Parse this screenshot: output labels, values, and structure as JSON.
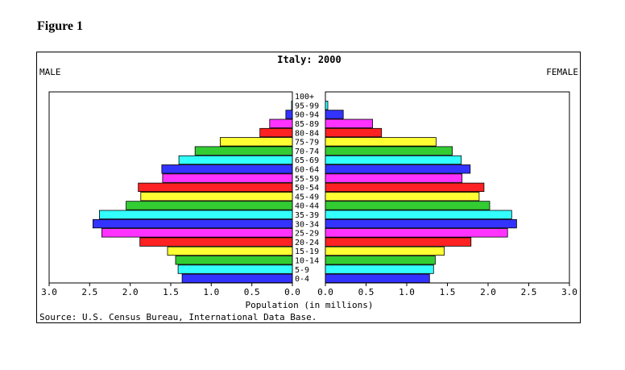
{
  "figure_label": "Figure 1",
  "chart_data": {
    "type": "bar",
    "title": "Italy: 2000",
    "left_label": "MALE",
    "right_label": "FEMALE",
    "xlabel": "Population (in millions)",
    "source": "Source: U.S. Census Bureau, International Data Base.",
    "xlim": [
      0,
      3.0
    ],
    "x_ticks": [
      "3.0",
      "2.5",
      "2.0",
      "1.5",
      "1.0",
      "0.5",
      "0.0"
    ],
    "x_ticks_right": [
      "0.0",
      "0.5",
      "1.0",
      "1.5",
      "2.0",
      "2.5",
      "3.0"
    ],
    "categories": [
      "0-4",
      "5-9",
      "10-14",
      "15-19",
      "20-24",
      "25-29",
      "30-34",
      "35-39",
      "40-44",
      "45-49",
      "50-54",
      "55-59",
      "60-64",
      "65-69",
      "70-74",
      "75-79",
      "80-84",
      "85-89",
      "90-94",
      "95-99",
      "100+"
    ],
    "series": [
      {
        "name": "MALE",
        "values": [
          1.36,
          1.41,
          1.44,
          1.54,
          1.88,
          2.35,
          2.46,
          2.38,
          2.05,
          1.87,
          1.9,
          1.6,
          1.61,
          1.4,
          1.2,
          0.89,
          0.4,
          0.28,
          0.08,
          0.01,
          0.0
        ]
      },
      {
        "name": "FEMALE",
        "values": [
          1.28,
          1.33,
          1.35,
          1.46,
          1.79,
          2.24,
          2.35,
          2.29,
          2.02,
          1.89,
          1.95,
          1.68,
          1.78,
          1.67,
          1.56,
          1.36,
          0.69,
          0.58,
          0.22,
          0.03,
          0.0
        ]
      }
    ],
    "bar_colors": [
      "#3333ff",
      "#33ffff",
      "#33cc33",
      "#ffff33",
      "#ff2222",
      "#ff33ff",
      "#3333ff",
      "#33ffff",
      "#33cc33",
      "#ffff33",
      "#ff2222",
      "#ff33ff",
      "#3333ff",
      "#33ffff",
      "#33cc33",
      "#ffff33",
      "#ff2222",
      "#ff33ff",
      "#3333ff",
      "#33ffff",
      "#33cc33"
    ]
  }
}
